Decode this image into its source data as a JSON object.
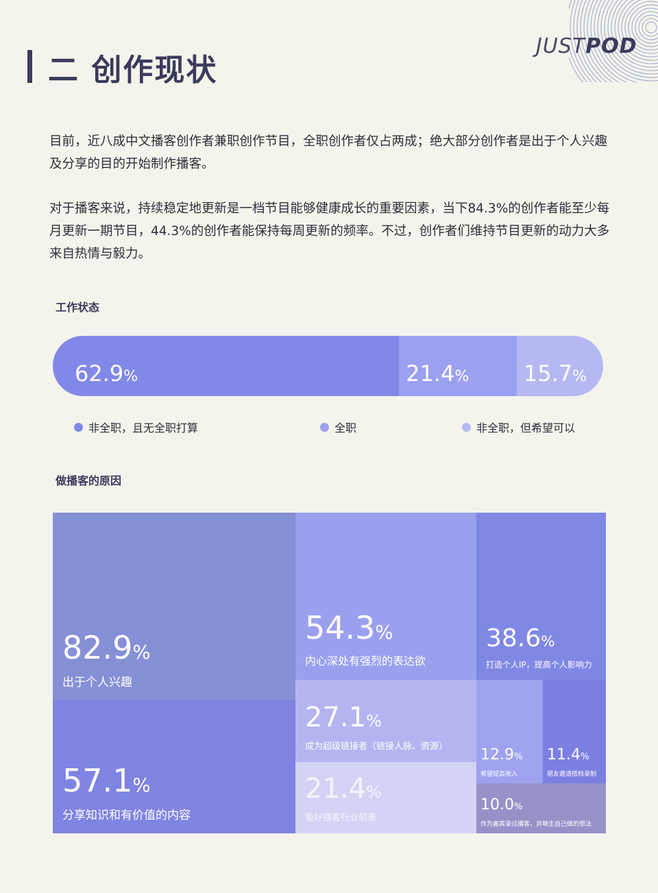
{
  "header": {
    "title": "二 创作现状",
    "logo": "JUSTPOD",
    "logo_a": "JUST",
    "logo_b": "POD"
  },
  "paragraphs": [
    "目前，近八成中文播客创作者兼职创作节目，全职创作者仅占两成；绝大部分创作者是出于个人兴趣及分享的目的开始制作播客。",
    "对于播客来说，持续稳定地更新是一档节目能够健康成长的重要因素，当下84.3%的创作者能至少每月更新一期节目，44.3%的创作者能保持每周更新的频率。不过，创作者们维持节目更新的动力大多来自热情与毅力。"
  ],
  "chart_data": [
    {
      "type": "bar",
      "title": "工作状态",
      "orientation": "horizontal-stacked",
      "categories": [
        "非全职，且无全职打算",
        "全职",
        "非全职，但希望可以"
      ],
      "values": [
        62.9,
        21.4,
        15.7
      ],
      "unit": "%",
      "colors": [
        "#8288e8",
        "#9ba0f0",
        "#b6b8f2"
      ],
      "legend": "bottom"
    },
    {
      "type": "treemap",
      "title": "做播客的原因",
      "unit": "%",
      "items": [
        {
          "label": "出于个人兴趣",
          "value": 82.9,
          "color": "#8590d6"
        },
        {
          "label": "分享知识和有价值的内容",
          "value": 57.1,
          "color": "#7f83e2"
        },
        {
          "label": "内心深处有强烈的表达欲",
          "value": 54.3,
          "color": "#9aa0ee"
        },
        {
          "label": "成为超级链接者（链接人脉、资源）",
          "value": 27.1,
          "color": "#b4b5f0"
        },
        {
          "label": "看好播客行业前景",
          "value": 21.4,
          "color": "#d3d3f5"
        },
        {
          "label": "打造个人IP，提高个人影响力",
          "value": 38.6,
          "color": "#8088e4"
        },
        {
          "label": "希望提高收入",
          "value": 12.9,
          "color": "#9ea2ef"
        },
        {
          "label": "朋友邀请搭档录制",
          "value": 11.4,
          "color": "#7c7fe2"
        },
        {
          "label": "作为嘉宾录过播客，并萌生自己做的想法",
          "value": 10.0,
          "color": "#9592c8"
        }
      ]
    }
  ]
}
